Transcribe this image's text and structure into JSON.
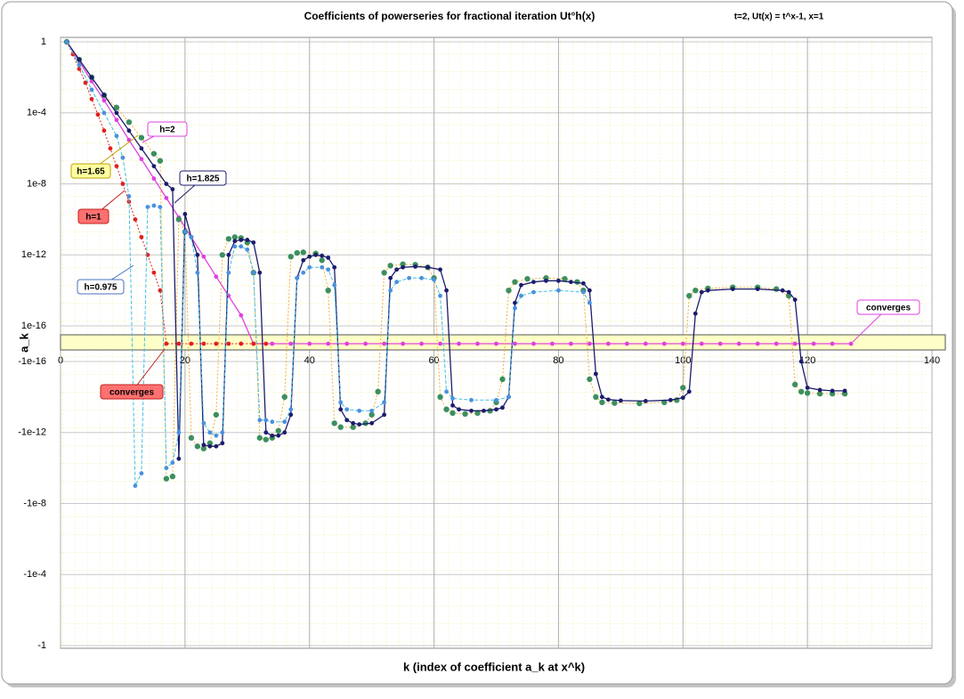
{
  "chart_data": {
    "type": "scatter-line",
    "title": "Coefficients of powerseries for fractional iteration Ut°h(x)",
    "subtitle": "t=2, Ut(x) = t^x-1, x=1",
    "x_label": "k (index of coefficient a_k at x^k)",
    "y_label": "a_k",
    "y_scale": "symlog",
    "linthresh": 1e-16,
    "xlim": [
      0,
      140
    ],
    "xticks": [
      0,
      20,
      40,
      60,
      80,
      100,
      120,
      140
    ],
    "ylim": [
      -1,
      1
    ],
    "yticks": [
      1,
      {
        "value": 0.0001,
        "label": "1e-4"
      },
      1e-08,
      1e-12,
      1e-16,
      -1e-16,
      -1e-12,
      -1e-08,
      {
        "value": -0.0001,
        "label": "-1e-4"
      },
      -1
    ],
    "grid": true,
    "annotations": [
      "converges",
      "converges"
    ],
    "series": [
      {
        "name": "h=2",
        "color": "#e040e0",
        "line_color": "#e040e0",
        "line_style": "solid",
        "x": [
          1,
          3,
          5,
          7,
          9,
          11,
          13,
          15,
          17,
          19,
          21,
          23,
          25,
          27,
          29,
          31,
          34,
          37,
          40,
          43,
          46,
          49,
          52,
          55,
          58,
          61,
          64,
          67,
          70,
          73,
          76,
          79,
          82,
          85,
          88,
          91,
          94,
          97,
          100,
          103,
          106,
          109,
          112,
          115,
          118,
          121,
          124,
          127
        ],
        "values": [
          1,
          0.08,
          0.006,
          0.0005,
          4e-05,
          3e-06,
          2.5e-07,
          2e-08,
          1.6e-09,
          1.3e-10,
          1e-11,
          8e-13,
          6e-14,
          5e-15,
          4e-16,
          0,
          0,
          0,
          0,
          0,
          0,
          0,
          0,
          0,
          0,
          0,
          0,
          0,
          0,
          0,
          0,
          0,
          0,
          0,
          0,
          0,
          0,
          0,
          0,
          0,
          0,
          0,
          0,
          0,
          0,
          0,
          0,
          0
        ]
      },
      {
        "name": "h=1.65",
        "color": "#3d8f5f",
        "line_color": "#f0b040",
        "line_style": "dotted",
        "x": [
          1,
          3,
          5,
          7,
          9,
          11,
          13,
          15,
          16,
          17,
          18,
          19,
          20,
          21,
          22,
          23,
          24,
          25,
          26,
          27,
          28,
          29,
          30,
          31,
          32,
          33,
          34,
          35,
          36,
          37,
          38,
          39,
          41,
          42,
          43,
          44,
          45,
          47,
          49,
          50,
          51,
          52,
          53,
          55,
          57,
          59,
          60,
          61,
          62,
          63,
          65,
          67,
          69,
          70,
          71,
          72,
          73,
          75,
          78,
          81,
          83,
          84,
          85,
          86,
          87,
          89,
          93,
          97,
          99,
          100,
          101,
          102,
          104,
          108,
          112,
          115,
          117,
          118,
          119,
          120,
          122,
          124,
          126
        ],
        "values": [
          1,
          0.1,
          0.01,
          0.001,
          0.0002,
          3e-05,
          4e-06,
          5e-07,
          2e-07,
          -4e-10,
          -3e-10,
          1e-10,
          2e-11,
          -2e-12,
          -6e-12,
          -8e-12,
          -4e-12,
          -1e-13,
          1e-12,
          8e-12,
          1e-11,
          9e-12,
          5e-12,
          1e-13,
          -2e-12,
          -2.5e-12,
          -2e-12,
          -8e-13,
          -1e-14,
          8e-13,
          1.3e-12,
          1.4e-12,
          1.2e-12,
          5e-13,
          1e-14,
          -3e-13,
          -5e-13,
          -5e-13,
          -3e-13,
          -1e-13,
          -5e-15,
          1e-13,
          2.5e-13,
          3e-13,
          2.8e-13,
          2e-13,
          5e-14,
          -1e-14,
          -5e-14,
          -8e-14,
          -9e-14,
          -8e-14,
          -6e-14,
          -2e-14,
          -1e-15,
          1e-14,
          3e-14,
          4.5e-14,
          5e-14,
          4.5e-14,
          3e-14,
          1e-14,
          -1e-15,
          -1e-14,
          -2e-14,
          -2.2e-14,
          -2.3e-14,
          -2e-14,
          -1.5e-14,
          -3e-15,
          5e-15,
          1e-14,
          1.3e-14,
          1.5e-14,
          1.5e-14,
          1.2e-14,
          5e-15,
          -2e-15,
          -5e-15,
          -6e-15,
          -6.5e-15,
          -6.5e-15,
          -6.5e-15
        ]
      },
      {
        "name": "h=1.825",
        "color": "#1c1c6e",
        "line_color": "#1c1c6e",
        "line_style": "solid",
        "x": [
          1,
          3,
          5,
          7,
          9,
          11,
          13,
          15,
          17,
          18,
          19,
          20,
          21,
          22,
          23,
          24,
          25,
          26,
          27,
          28,
          29,
          30,
          31,
          32,
          33,
          34,
          35,
          36,
          37,
          38,
          39,
          40,
          41,
          42,
          43,
          44,
          45,
          46,
          47,
          48,
          50,
          52,
          53,
          54,
          55,
          57,
          59,
          61,
          62,
          63,
          64,
          66,
          68,
          70,
          71,
          72,
          73,
          74,
          76,
          78,
          80,
          82,
          84,
          85,
          86,
          87,
          88,
          90,
          94,
          98,
          100,
          101,
          102,
          103,
          104,
          108,
          112,
          116,
          117,
          118,
          119,
          120,
          122,
          124,
          126
        ],
        "values": [
          1,
          0.1,
          0.01,
          0.001,
          0.0001,
          1e-05,
          1e-06,
          1e-07,
          1e-08,
          5e-09,
          -3e-11,
          2e-10,
          1e-11,
          1e-12,
          -5e-12,
          -6e-12,
          -6e-12,
          -4e-12,
          1e-12,
          6e-12,
          7e-12,
          7e-12,
          5e-12,
          1e-13,
          -1e-12,
          -1.5e-12,
          -1.5e-12,
          -1e-12,
          -1e-13,
          5e-14,
          5e-13,
          8e-13,
          1e-12,
          9e-13,
          7e-13,
          2e-13,
          -5e-14,
          -2e-13,
          -3e-13,
          -3.5e-13,
          -3e-13,
          -1e-13,
          5e-14,
          1.5e-13,
          2e-13,
          2.2e-13,
          2e-13,
          1.5e-13,
          1e-14,
          -3e-14,
          -5e-14,
          -6e-14,
          -6e-14,
          -5e-14,
          -4e-14,
          -1e-14,
          2e-15,
          2e-14,
          3e-14,
          3.5e-14,
          3.5e-14,
          3e-14,
          2.5e-14,
          1e-14,
          -5e-16,
          -1e-14,
          -1.4e-14,
          -1.6e-14,
          -1.7e-14,
          -1.5e-14,
          -1.1e-14,
          -5e-15,
          5e-16,
          8e-15,
          1e-14,
          1.2e-14,
          1.2e-14,
          1e-14,
          8e-15,
          3e-15,
          -1e-16,
          -3e-15,
          -4e-15,
          -4.5e-15,
          -4.5e-15
        ]
      },
      {
        "name": "h=1",
        "color": "#e02020",
        "line_color": "#e02020",
        "line_style": "dotted",
        "x": [
          1,
          2,
          3,
          4,
          5,
          6,
          7,
          8,
          9,
          10,
          11,
          12,
          13,
          14,
          15,
          16,
          17,
          19,
          21,
          23,
          25,
          27,
          29,
          31,
          33
        ],
        "values": [
          1,
          0.2,
          0.03,
          0.005,
          0.0006,
          8e-05,
          1e-05,
          1e-06,
          1e-07,
          1e-08,
          1e-09,
          1e-10,
          1e-11,
          1e-12,
          1e-13,
          1e-14,
          0,
          0,
          0,
          0,
          0,
          0,
          0,
          0,
          0
        ]
      },
      {
        "name": "h=0.975",
        "color": "#4a90e0",
        "line_color": "#40c0e0",
        "line_style": "dashed",
        "x": [
          1,
          3,
          5,
          7,
          9,
          10,
          11,
          12,
          13,
          14,
          15,
          16,
          17,
          18,
          19,
          20,
          21,
          22,
          23,
          24,
          25,
          26,
          27,
          28,
          29,
          30,
          31,
          32,
          33,
          34,
          36,
          37,
          38,
          39,
          40,
          42,
          43,
          44,
          45,
          46,
          48,
          50,
          52,
          53,
          54,
          56,
          58,
          60,
          61,
          62,
          63,
          66,
          70,
          72,
          73,
          74,
          76,
          80,
          84,
          85
        ],
        "values": [
          1,
          0.05,
          0.002,
          0.0001,
          5e-06,
          3e-07,
          2e-09,
          -1e-09,
          -2e-10,
          5e-10,
          6e-10,
          5e-10,
          -1e-10,
          -5e-11,
          -1e-12,
          2e-11,
          1e-11,
          1e-13,
          -3e-13,
          -1e-12,
          -1.5e-12,
          -1e-12,
          1e-13,
          3e-12,
          3e-12,
          2e-12,
          1e-13,
          -2e-13,
          -2e-13,
          -2.5e-13,
          -2.5e-13,
          -5e-14,
          5e-14,
          1e-13,
          2e-13,
          2e-13,
          1.5e-13,
          2e-14,
          -2e-14,
          -5e-14,
          -6e-14,
          -6e-14,
          -2e-14,
          1e-14,
          3e-14,
          5e-14,
          5e-14,
          4e-14,
          5e-15,
          -5e-15,
          -1.2e-14,
          -1.5e-14,
          -1.5e-14,
          -1e-14,
          1e-15,
          5e-15,
          8e-15,
          1e-14,
          8e-15,
          2e-15
        ]
      }
    ]
  }
}
